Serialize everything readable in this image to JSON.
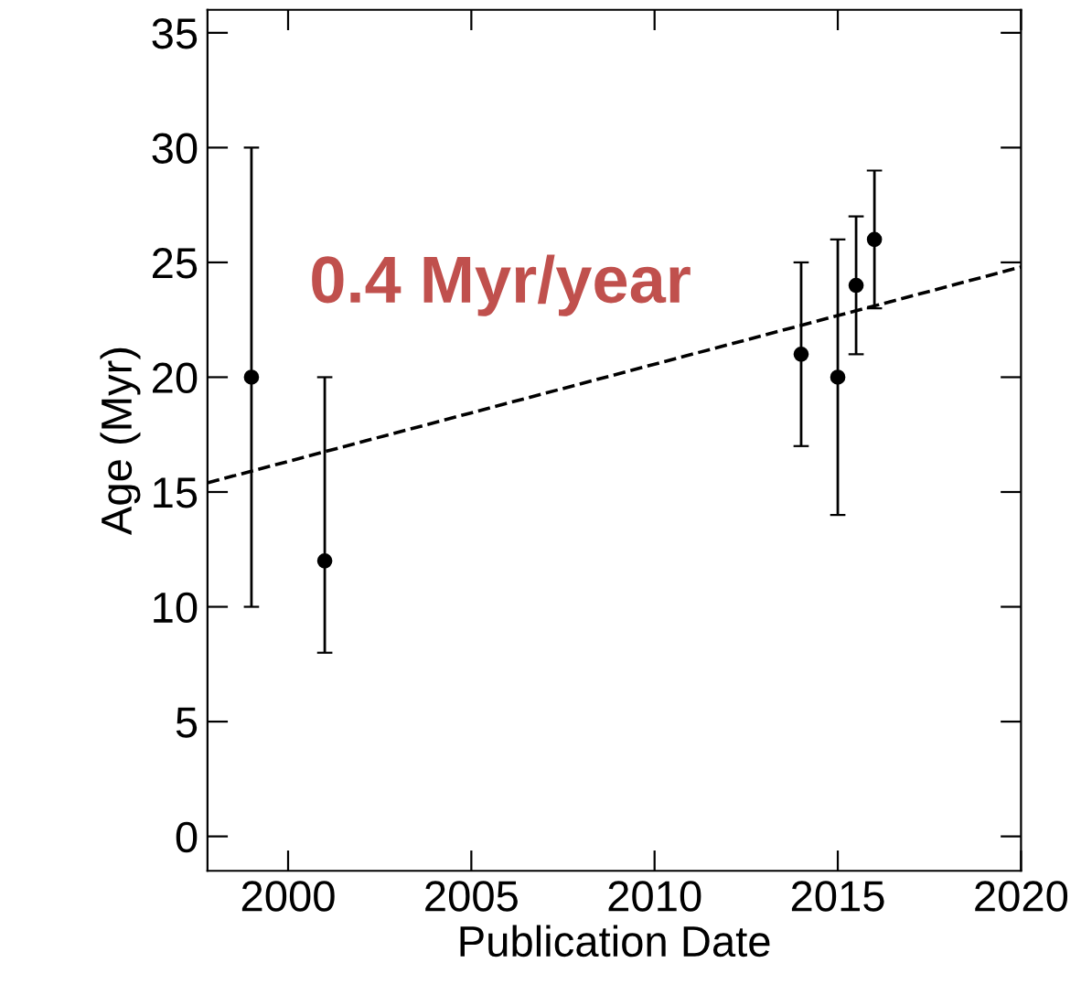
{
  "chart_data": {
    "type": "scatter",
    "xlabel": "Publication Date",
    "ylabel": "Age (Myr)",
    "xlim": [
      1997.8,
      2020
    ],
    "xticks": [
      2000,
      2005,
      2010,
      2015,
      2020
    ],
    "ylim": [
      -1.5,
      36
    ],
    "yticks": [
      0,
      5,
      10,
      15,
      20,
      25,
      30,
      35
    ],
    "grid": false,
    "series": [
      {
        "marker": "circle",
        "color": "#000000",
        "x": [
          1999,
          2001,
          2014,
          2015,
          2015.5,
          2016
        ],
        "values": [
          20,
          12,
          21,
          20,
          24,
          26
        ],
        "errors": [
          [
            10,
            30
          ],
          [
            8,
            20
          ],
          [
            17,
            25
          ],
          [
            14,
            26
          ],
          [
            21,
            27
          ],
          [
            23,
            29
          ]
        ]
      },
      {
        "type": "line",
        "color": "#000000",
        "line_style": "dashed",
        "x": [
          1997.8,
          2020
        ],
        "values": [
          15.4,
          24.8
        ]
      }
    ],
    "annotations": [
      "0.4 Myr/year"
    ]
  }
}
